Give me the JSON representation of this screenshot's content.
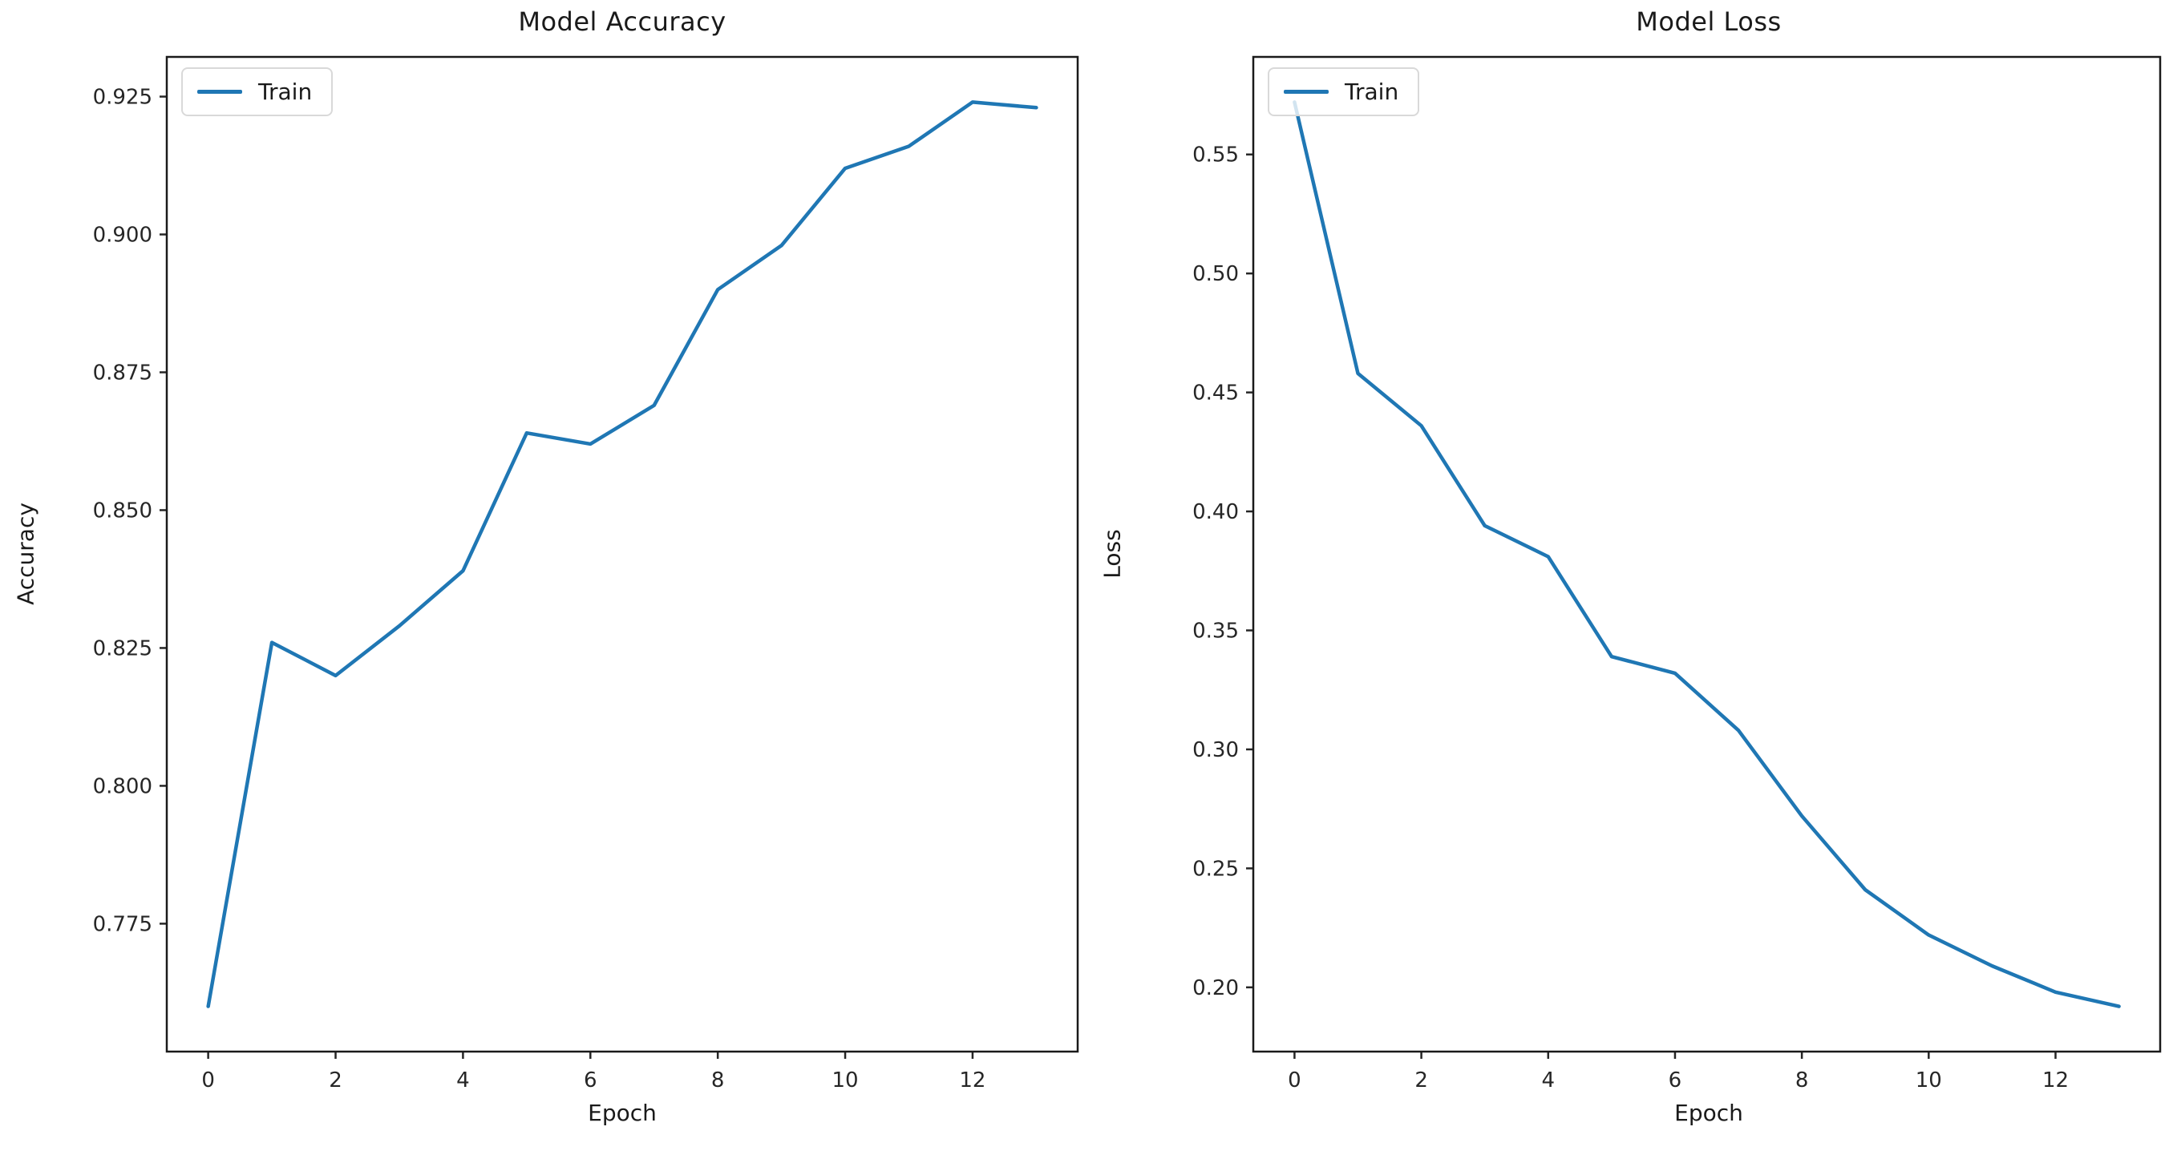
{
  "figure": {
    "background": "#ffffff",
    "spine_color": "#1a1a1a",
    "tick_color": "#262626"
  },
  "chart_data": [
    {
      "type": "line",
      "title": "Model Accuracy",
      "xlabel": "Epoch",
      "ylabel": "Accuracy",
      "legend_position": "upper left",
      "line_color": "#1f77b4",
      "grid": false,
      "x": [
        0,
        1,
        2,
        3,
        4,
        5,
        6,
        7,
        8,
        9,
        10,
        11,
        12,
        13
      ],
      "series": [
        {
          "name": "Train",
          "values": [
            0.76,
            0.826,
            0.82,
            0.829,
            0.839,
            0.864,
            0.862,
            0.869,
            0.89,
            0.898,
            0.912,
            0.916,
            0.924,
            0.923
          ]
        }
      ],
      "xlim": [
        -0.65,
        13.65
      ],
      "ylim": [
        0.7518,
        0.9322
      ],
      "xticks": [
        0,
        2,
        4,
        6,
        8,
        10,
        12
      ],
      "xtick_labels": [
        "0",
        "2",
        "4",
        "6",
        "8",
        "10",
        "12"
      ],
      "yticks": [
        0.775,
        0.8,
        0.825,
        0.85,
        0.875,
        0.9,
        0.925
      ],
      "ytick_labels": [
        "0.775",
        "0.800",
        "0.825",
        "0.850",
        "0.875",
        "0.900",
        "0.925"
      ]
    },
    {
      "type": "line",
      "title": "Model Loss",
      "xlabel": "Epoch",
      "ylabel": "Loss",
      "legend_position": "upper left",
      "line_color": "#1f77b4",
      "grid": false,
      "x": [
        0,
        1,
        2,
        3,
        4,
        5,
        6,
        7,
        8,
        9,
        10,
        11,
        12,
        13
      ],
      "series": [
        {
          "name": "Train",
          "values": [
            0.572,
            0.458,
            0.436,
            0.394,
            0.381,
            0.339,
            0.332,
            0.308,
            0.272,
            0.241,
            0.222,
            0.209,
            0.198,
            0.192
          ]
        }
      ],
      "xlim": [
        -0.65,
        13.65
      ],
      "ylim": [
        0.173,
        0.591
      ],
      "xticks": [
        0,
        2,
        4,
        6,
        8,
        10,
        12
      ],
      "xtick_labels": [
        "0",
        "2",
        "4",
        "6",
        "8",
        "10",
        "12"
      ],
      "yticks": [
        0.2,
        0.25,
        0.3,
        0.35,
        0.4,
        0.45,
        0.5,
        0.55
      ],
      "ytick_labels": [
        "0.20",
        "0.25",
        "0.30",
        "0.35",
        "0.40",
        "0.45",
        "0.50",
        "0.55"
      ]
    }
  ]
}
